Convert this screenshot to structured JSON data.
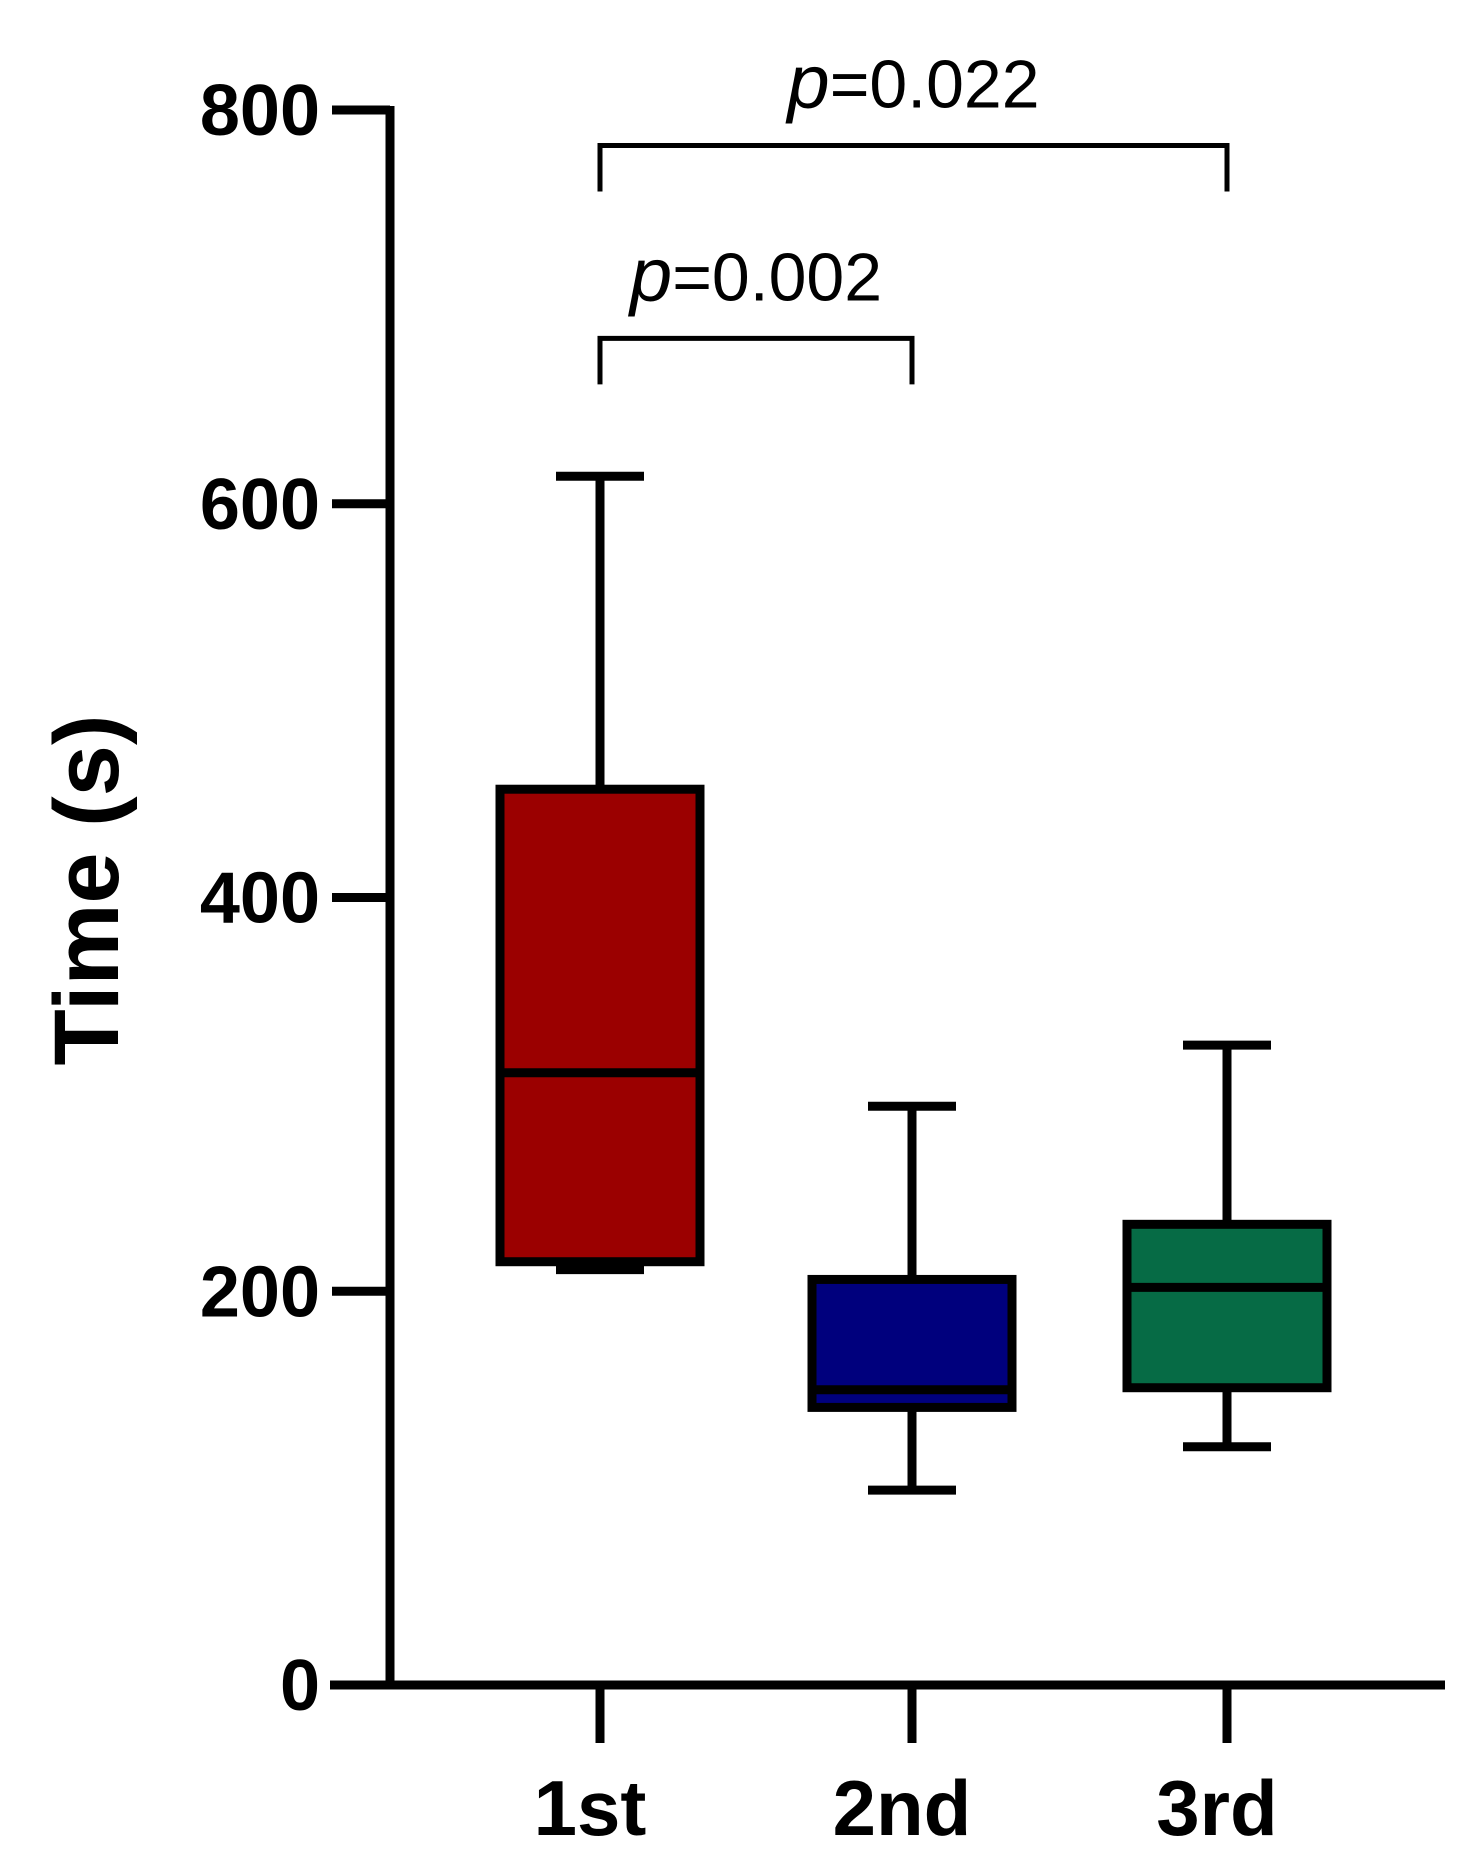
{
  "chart_data": {
    "type": "box",
    "ylabel": "Time (s)",
    "ylim": [
      0,
      800
    ],
    "yticks": [
      0,
      200,
      400,
      600,
      800
    ],
    "categories": [
      "1st",
      "2nd",
      "3rd"
    ],
    "boxes": [
      {
        "category": "1st",
        "min": 211,
        "q1": 215,
        "median": 311,
        "q3": 455,
        "max": 614,
        "color": "#9b0000"
      },
      {
        "category": "2nd",
        "min": 99,
        "q1": 141,
        "median": 150,
        "q3": 206,
        "max": 294,
        "color": "#00007d"
      },
      {
        "category": "3rd",
        "min": 121,
        "q1": 151,
        "median": 202,
        "q3": 234,
        "max": 325,
        "color": "#066b45"
      }
    ],
    "comparisons": [
      {
        "from": "1st",
        "to": "2nd",
        "label": "=0.002",
        "p_symbol": "p",
        "level": 684
      },
      {
        "from": "1st",
        "to": "3rd",
        "label": "=0.022",
        "p_symbol": "p",
        "level": 782
      }
    ],
    "grid": false,
    "legend": "none"
  }
}
